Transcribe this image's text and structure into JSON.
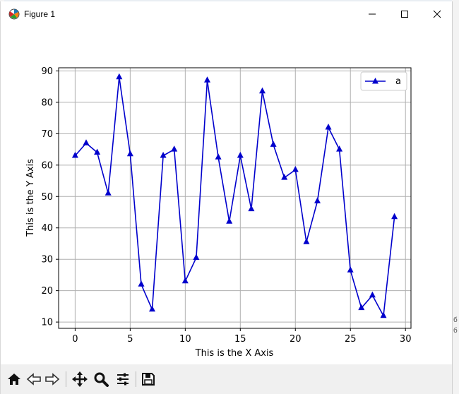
{
  "window": {
    "title": "Figure 1"
  },
  "background": {
    "fragment1": "б",
    "fragment2": "б"
  },
  "toolbar": {
    "buttons": [
      "home-icon",
      "back-icon",
      "forward-icon",
      "pan-icon",
      "zoom-icon",
      "configure-icon",
      "save-icon"
    ]
  },
  "chart_data": {
    "type": "line",
    "x": [
      0,
      1,
      2,
      3,
      4,
      5,
      6,
      7,
      8,
      9,
      10,
      11,
      12,
      13,
      14,
      15,
      16,
      17,
      18,
      19,
      20,
      21,
      22,
      23,
      24,
      25,
      26,
      27,
      28,
      29
    ],
    "series": [
      {
        "name": "a",
        "values": [
          63,
          67,
          64,
          51,
          88,
          63.5,
          22,
          14,
          63,
          65,
          23,
          30.5,
          87,
          62.5,
          42,
          63,
          46,
          83.5,
          66.5,
          56,
          58.5,
          35.5,
          48.5,
          72,
          65,
          26.5,
          14.5,
          18.5,
          12,
          43.5
        ],
        "color": "#0000cc",
        "marker": "triangle-up"
      }
    ],
    "xlabel": "This is the X Axis",
    "ylabel": "This is the Y Axis",
    "xlim": [
      -1.5,
      30.5
    ],
    "ylim": [
      8,
      91
    ],
    "xticks": [
      0,
      5,
      10,
      15,
      20,
      25,
      30
    ],
    "yticks": [
      10,
      20,
      30,
      40,
      50,
      60,
      70,
      80,
      90
    ],
    "grid": true,
    "legend_position": "top-right"
  }
}
